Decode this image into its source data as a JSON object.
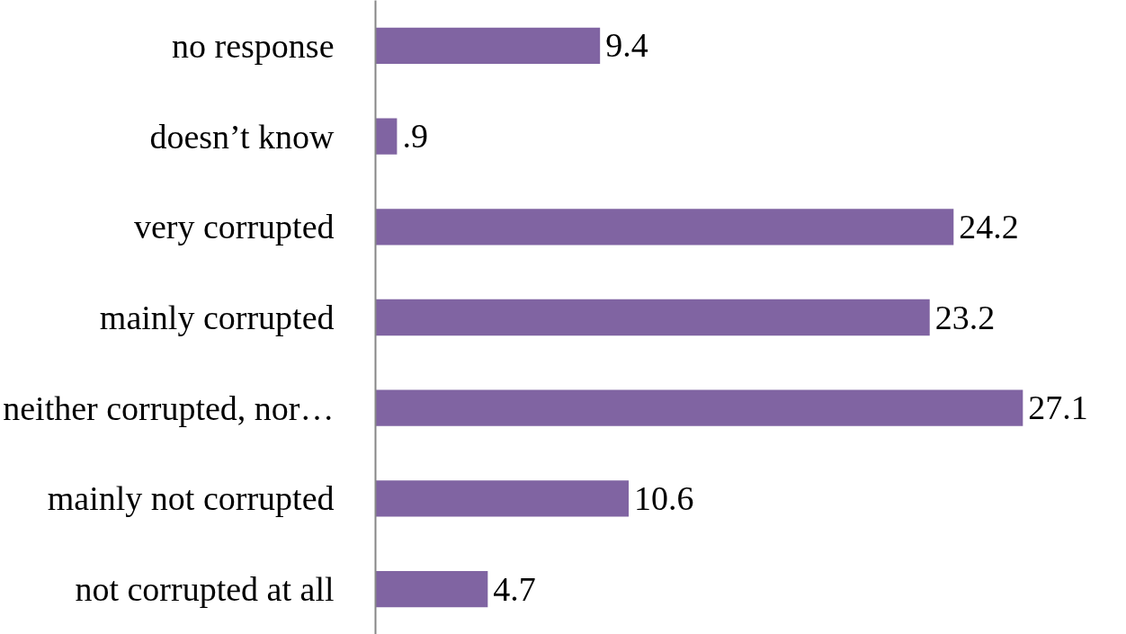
{
  "chart_data": {
    "type": "bar",
    "orientation": "horizontal",
    "categories": [
      "no response",
      "doesn’t know",
      "very corrupted",
      "mainly corrupted",
      "neither corrupted, nor…",
      "mainly not corrupted",
      "not corrupted at all"
    ],
    "values": [
      9.4,
      0.9,
      24.2,
      23.2,
      27.1,
      10.6,
      4.7
    ],
    "value_labels": [
      "9.4",
      ".9",
      "24.2",
      "23.2",
      "27.1",
      "10.6",
      "4.7"
    ],
    "color": "#8064a2",
    "grid": false
  }
}
